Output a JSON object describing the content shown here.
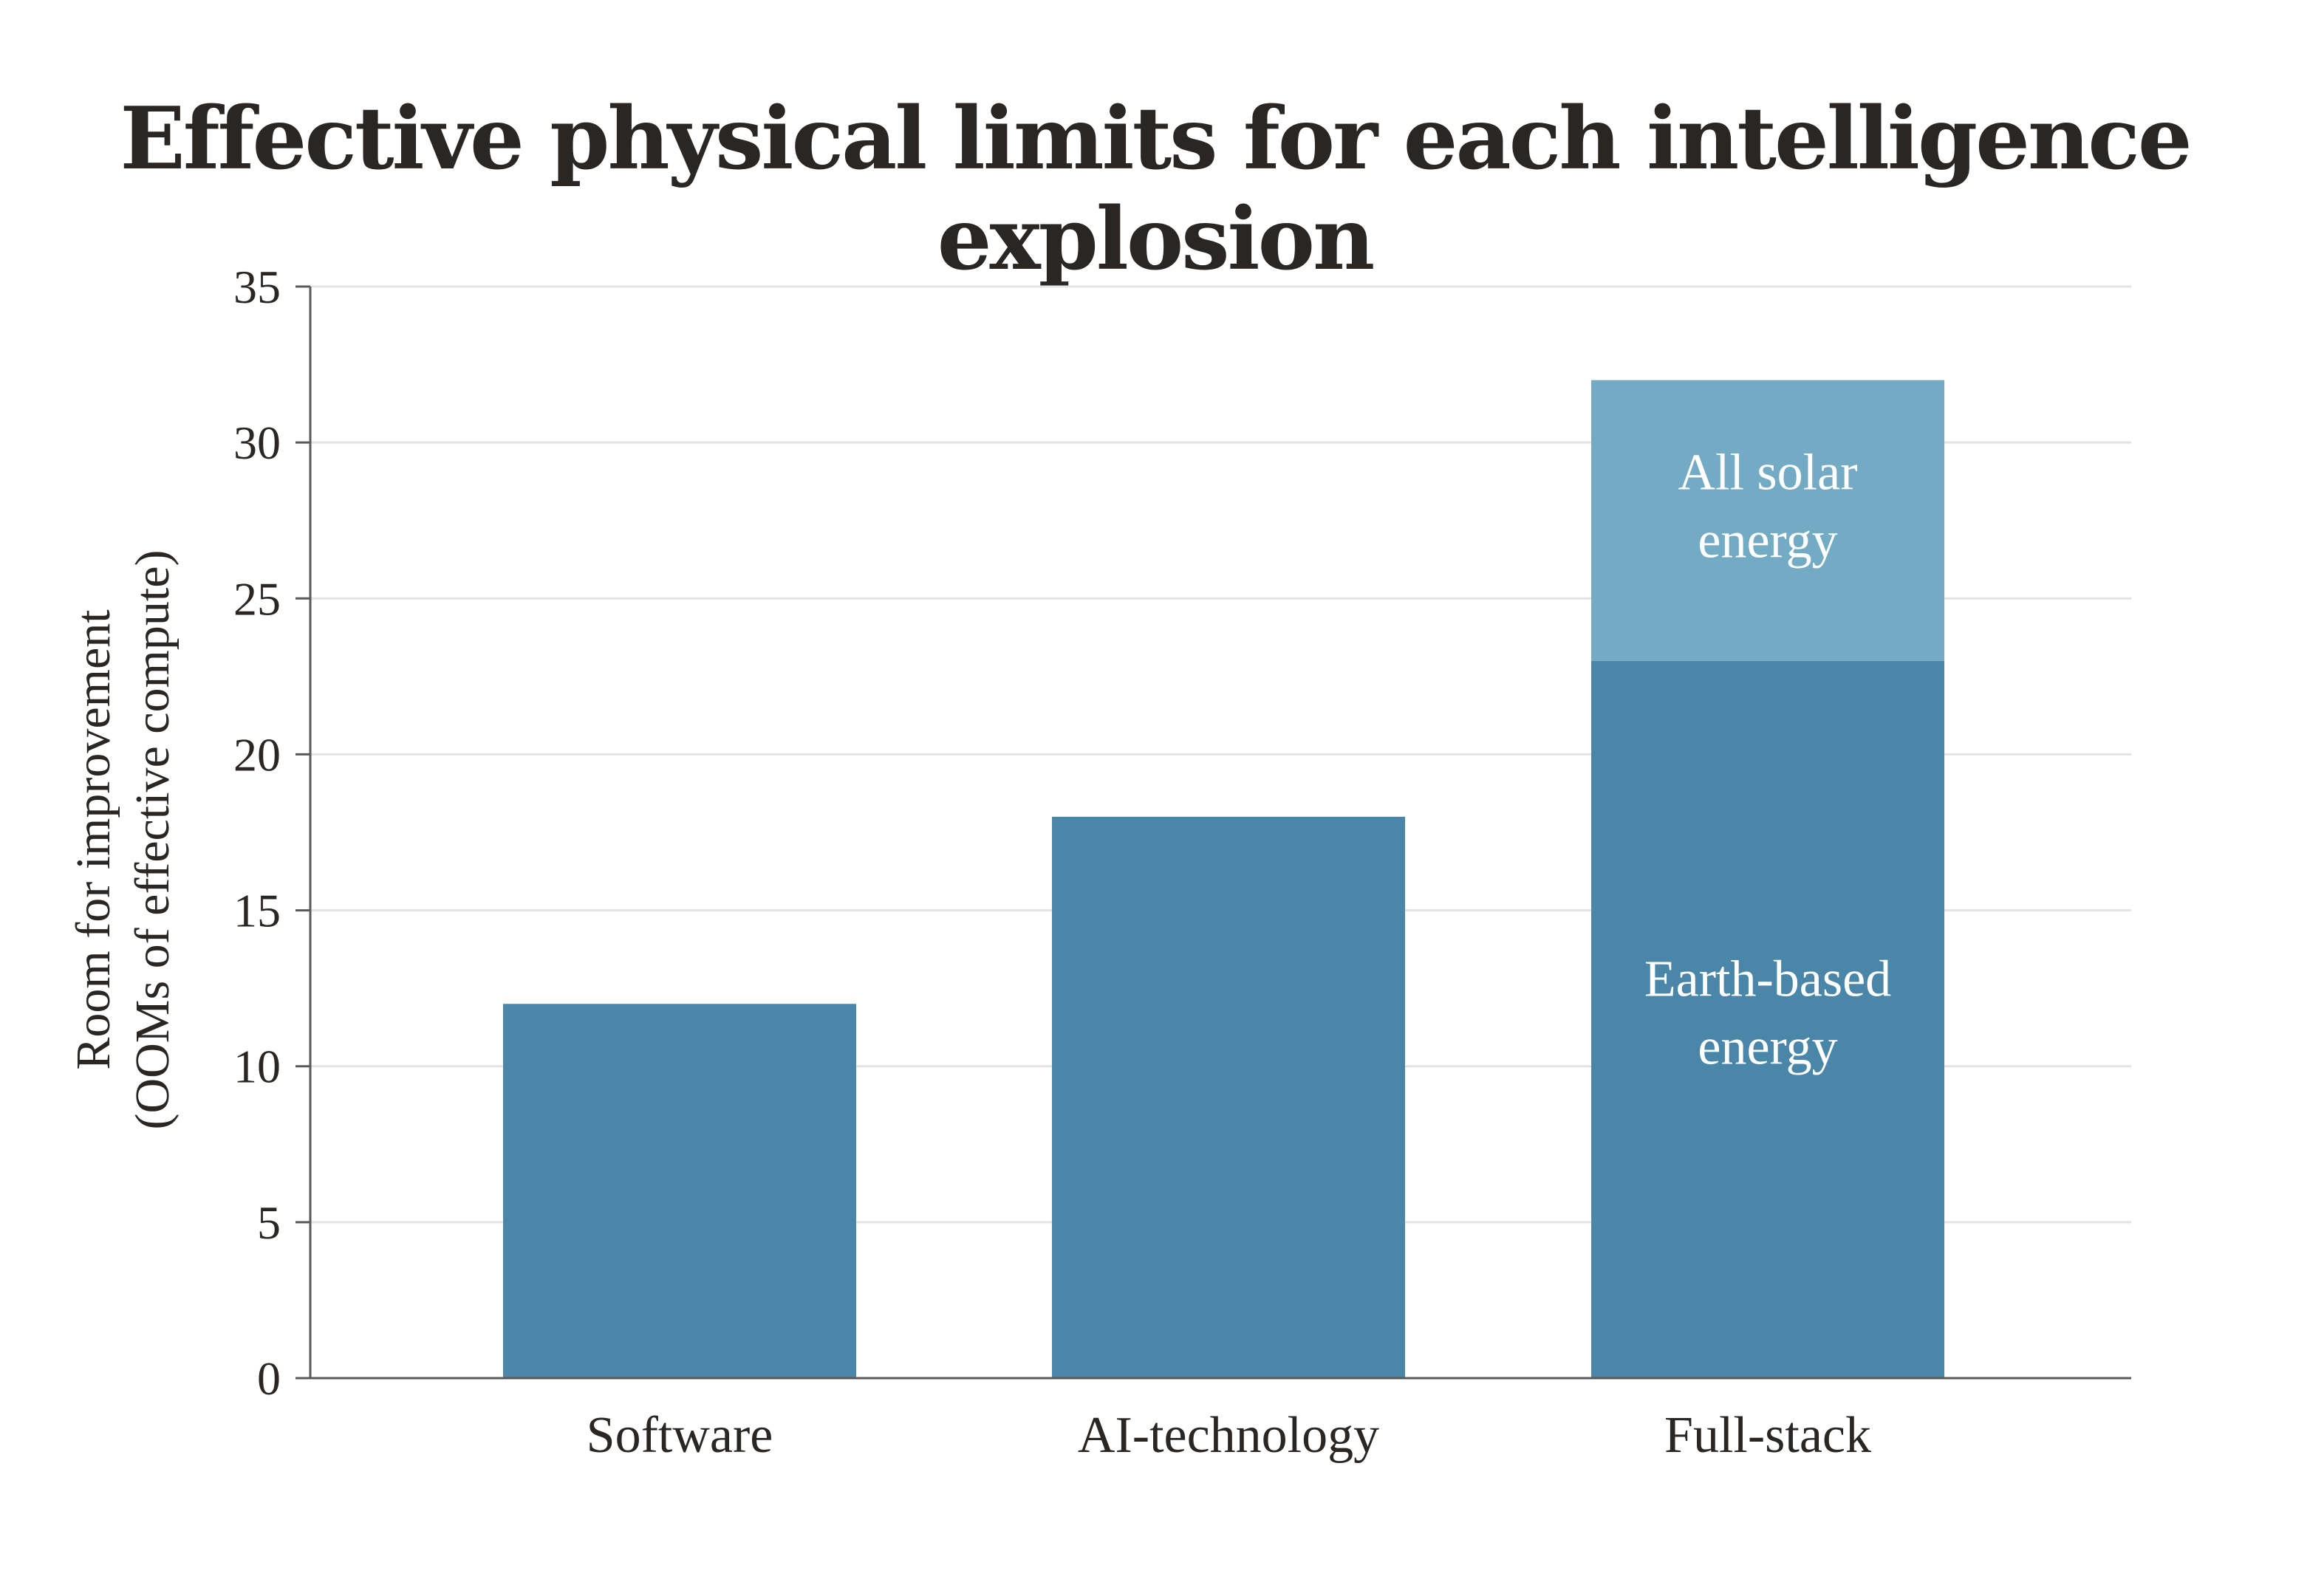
{
  "chart_data": {
    "type": "bar",
    "stacked": true,
    "title": "Effective physical limits for each intelligence explosion",
    "ylabel": [
      "Room for improvement",
      "(OOMs of effective compute)"
    ],
    "xlabel": "",
    "ylim": [
      0,
      35
    ],
    "yticks": [
      0,
      5,
      10,
      15,
      20,
      25,
      30,
      35
    ],
    "grid": true,
    "categories": [
      "Software",
      "AI-technology",
      "Full-stack"
    ],
    "series": [
      {
        "label": [
          "Earth-based",
          "energy"
        ],
        "values": [
          12,
          18,
          23
        ],
        "color": "#4986a8"
      },
      {
        "label": [
          "All solar",
          "energy"
        ],
        "values": [
          0,
          0,
          9
        ],
        "color": "#73abc5"
      }
    ],
    "segment_labels_on_category": "Full-stack"
  }
}
